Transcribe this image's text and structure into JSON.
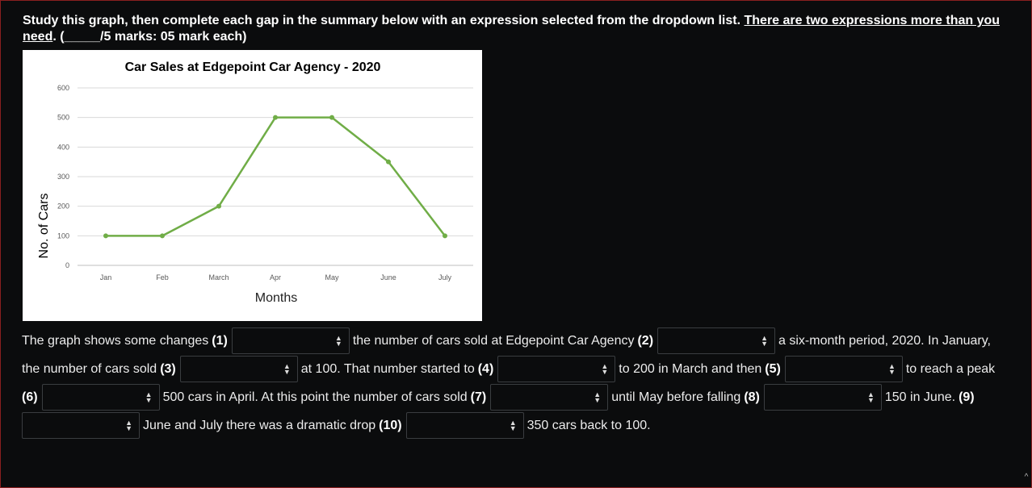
{
  "instructions": {
    "main": "Study this graph, then complete each gap in the summary below with an expression selected from the dropdown list. ",
    "underlined": "There are two expressions more than you need",
    "marks": ".  (_____/5 marks: 05 mark each)"
  },
  "chart_data": {
    "type": "line",
    "title": "Car Sales at Edgepoint Car Agency - 2020",
    "xlabel": "Months",
    "ylabel": "No. of Cars",
    "categories": [
      "Jan",
      "Feb",
      "March",
      "Apr",
      "May",
      "June",
      "July"
    ],
    "values": [
      100,
      100,
      200,
      500,
      500,
      350,
      100
    ],
    "ylim": [
      0,
      600
    ],
    "yticks": [
      0,
      100,
      200,
      300,
      400,
      500,
      600
    ],
    "grid": true,
    "color": "#70ad47"
  },
  "summary": {
    "s1": "The graph shows some changes ",
    "n1": "(1)",
    "s2": "the number of cars sold at Edgepoint Car Agency ",
    "n2": "(2)",
    "s3": "a six-month period, 2020. In January,",
    "s4": "the number of cars sold ",
    "n3": "(3)",
    "s5": "at 100. That number started to ",
    "n4": "(4)",
    "s6": "to 200 in March and then ",
    "n5": "(5)",
    "s7": "to reach a peak",
    "n6": "(6)",
    "s8": "500 cars in April. At this point the number of cars sold ",
    "n7": "(7)",
    "s9": "until May before falling ",
    "n8": "(8)",
    "s10": "150 in June. ",
    "n9": "(9)",
    "s11": "June and July there was a dramatic drop ",
    "n10": "(10)",
    "s12": "350 cars back to 100."
  },
  "dropdowns": [
    {
      "id": 1,
      "selected": ""
    },
    {
      "id": 2,
      "selected": ""
    },
    {
      "id": 3,
      "selected": ""
    },
    {
      "id": 4,
      "selected": ""
    },
    {
      "id": 5,
      "selected": ""
    },
    {
      "id": 6,
      "selected": ""
    },
    {
      "id": 7,
      "selected": ""
    },
    {
      "id": 8,
      "selected": ""
    },
    {
      "id": 9,
      "selected": ""
    },
    {
      "id": 10,
      "selected": ""
    }
  ],
  "icons": {
    "dropdown": "up-down-arrow-icon",
    "scroll": "scroll-up-icon"
  }
}
